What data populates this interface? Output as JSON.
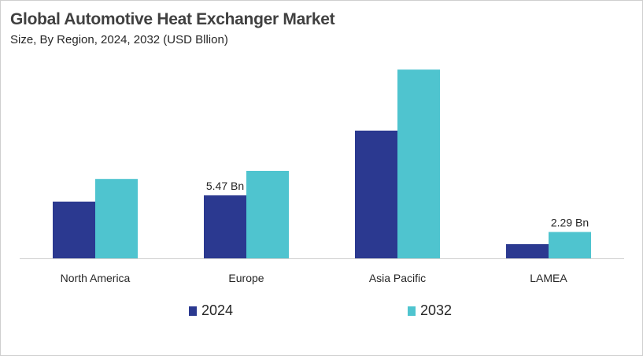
{
  "chart_data": {
    "type": "bar",
    "title": "Global Automotive Heat Exchanger Market",
    "subtitle": "Size, By Region, 2024, 2032 (USD Bllion)",
    "categories": [
      "North America",
      "Europe",
      "Asia Pacific",
      "LAMEA"
    ],
    "series": [
      {
        "name": "2024",
        "color": "#2B3990",
        "values": [
          4.93,
          5.47,
          11.1,
          1.23
        ]
      },
      {
        "name": "2032",
        "color": "#4FC4CF",
        "values": [
          6.9,
          7.6,
          16.4,
          2.29
        ]
      }
    ],
    "data_labels": [
      {
        "series": 0,
        "category": 1,
        "text": "5.47 Bn"
      },
      {
        "series": 1,
        "category": 3,
        "text": "2.29 Bn"
      }
    ],
    "ylim": [
      0,
      18
    ],
    "grid": false,
    "legend": "bottom",
    "xlabel": "",
    "ylabel": ""
  }
}
